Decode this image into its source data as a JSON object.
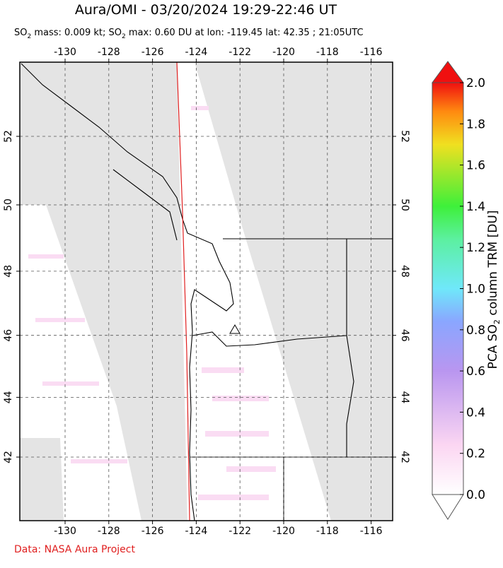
{
  "title": "Aura/OMI - 03/20/2024 19:29-22:46 UT",
  "subtitle": [
    "SO",
    "2",
    " mass: 0.009 kt; SO",
    "2",
    " max: 0.60 DU at lon: -119.45 lat: 42.35 ; 21:05UTC"
  ],
  "map": {
    "lon_ticks": [
      -130,
      -128,
      -126,
      -124,
      -122,
      -120,
      -118,
      -116
    ],
    "lat_ticks": [
      42,
      44,
      46,
      48,
      50,
      52
    ]
  },
  "colorbar": {
    "label": [
      "PCA SO",
      "2",
      " column TRM [DU]"
    ],
    "ticks": [
      {
        "value": 0,
        "label": "0.0"
      },
      {
        "value": 0.2,
        "label": "0.2"
      },
      {
        "value": 0.4,
        "label": "0.4"
      },
      {
        "value": 0.6,
        "label": "0.6"
      },
      {
        "value": 0.8,
        "label": "0.8"
      },
      {
        "value": 1.0,
        "label": "1.0"
      },
      {
        "value": 1.2,
        "label": "1.2"
      },
      {
        "value": 1.4,
        "label": "1.4"
      },
      {
        "value": 1.6,
        "label": "1.6"
      },
      {
        "value": 1.8,
        "label": "1.8"
      },
      {
        "value": 2.0,
        "label": "2.0"
      }
    ]
  },
  "footer": "Data: NASA Aura Project"
}
